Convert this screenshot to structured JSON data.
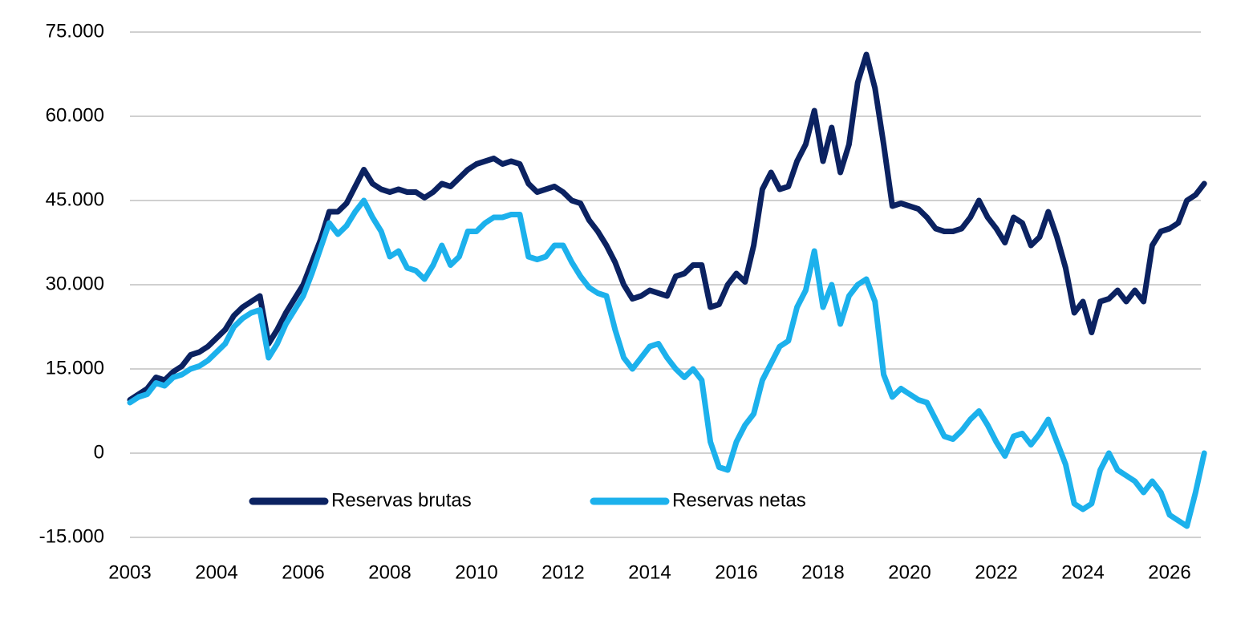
{
  "chart_data": {
    "type": "line",
    "categories": [
      "2003",
      null,
      null,
      null,
      null,
      null,
      null,
      null,
      null,
      null,
      "2004",
      null,
      null,
      null,
      null,
      null,
      null,
      null,
      null,
      null,
      "2006",
      null,
      null,
      null,
      null,
      null,
      null,
      null,
      null,
      null,
      "2008",
      null,
      null,
      null,
      null,
      null,
      null,
      null,
      null,
      null,
      "2010",
      null,
      null,
      null,
      null,
      null,
      null,
      null,
      null,
      null,
      "2012",
      null,
      null,
      null,
      null,
      null,
      null,
      null,
      null,
      null,
      "2014",
      null,
      null,
      null,
      null,
      null,
      null,
      null,
      null,
      null,
      "2016",
      null,
      null,
      null,
      null,
      null,
      null,
      null,
      null,
      null,
      "2018",
      null,
      null,
      null,
      null,
      null,
      null,
      null,
      null,
      null,
      "2020",
      null,
      null,
      null,
      null,
      null,
      null,
      null,
      null,
      null,
      "2022",
      null,
      null,
      null,
      null,
      null,
      null,
      null,
      null,
      null,
      "2024",
      null,
      null,
      null,
      null,
      null,
      null,
      null,
      null,
      null,
      "2026",
      null,
      null,
      null,
      null
    ],
    "series": [
      {
        "name": "Reservas brutas",
        "color": "#0b2261",
        "values": [
          9500,
          10500,
          11500,
          13500,
          13000,
          14500,
          15500,
          17500,
          18000,
          19000,
          20500,
          22000,
          24500,
          26000,
          27000,
          28000,
          19500,
          22000,
          25000,
          27500,
          30000,
          34000,
          38000,
          43000,
          43000,
          44500,
          47500,
          50500,
          48000,
          47000,
          46500,
          47000,
          46500,
          46500,
          45500,
          46500,
          48000,
          47500,
          49000,
          50500,
          51500,
          52000,
          52500,
          51500,
          52000,
          51500,
          48000,
          46500,
          47000,
          47500,
          46500,
          45000,
          44500,
          41500,
          39500,
          37000,
          34000,
          30000,
          27500,
          28000,
          29000,
          28500,
          28000,
          31500,
          32000,
          33500,
          33500,
          26000,
          26500,
          30000,
          32000,
          30500,
          37000,
          47000,
          50000,
          47000,
          47500,
          52000,
          55000,
          61000,
          52000,
          58000,
          50000,
          55000,
          66000,
          71000,
          65000,
          55000,
          44000,
          44500,
          44000,
          43500,
          42000,
          40000,
          39500,
          39500,
          40000,
          42000,
          45000,
          42000,
          40000,
          37500,
          42000,
          41000,
          37000,
          38500,
          43000,
          38500,
          33000,
          25000,
          27000,
          21500,
          27000,
          27500,
          29000,
          27000,
          29000,
          27000,
          37000,
          39500,
          40000,
          41000,
          45000,
          46000,
          48000
        ]
      },
      {
        "name": "Reservas netas",
        "color": "#1cb1ec",
        "values": [
          9000,
          10000,
          10500,
          12500,
          12000,
          13500,
          14000,
          15000,
          15500,
          16500,
          18000,
          19500,
          22500,
          24000,
          25000,
          25500,
          17000,
          19500,
          23000,
          25500,
          28000,
          32000,
          36500,
          41000,
          39000,
          40500,
          43000,
          45000,
          42000,
          39500,
          35000,
          36000,
          33000,
          32500,
          31000,
          33500,
          37000,
          33500,
          35000,
          39500,
          39500,
          41000,
          42000,
          42000,
          42500,
          42500,
          35000,
          34500,
          35000,
          37000,
          37000,
          34000,
          31500,
          29500,
          28500,
          28000,
          22000,
          17000,
          15000,
          17000,
          19000,
          19500,
          17000,
          15000,
          13500,
          15000,
          13000,
          2000,
          -2500,
          -3000,
          2000,
          5000,
          7000,
          13000,
          16000,
          19000,
          20000,
          26000,
          29000,
          36000,
          26000,
          30000,
          23000,
          28000,
          30000,
          31000,
          27000,
          14000,
          10000,
          11500,
          10500,
          9500,
          9000,
          6000,
          3000,
          2500,
          4000,
          6000,
          7500,
          5000,
          2000,
          -500,
          3000,
          3500,
          1500,
          3500,
          6000,
          2000,
          -2000,
          -9000,
          -10000,
          -9000,
          -3000,
          0,
          -3000,
          -4000,
          -5000,
          -7000,
          -5000,
          -7000,
          -11000,
          -12000,
          -13000,
          -7000,
          0
        ]
      }
    ],
    "ylim": [
      -15000,
      75000
    ],
    "yticks": [
      {
        "value": -15000,
        "label": "-15.000"
      },
      0,
      {
        "value": 15000,
        "label": "15.000"
      },
      {
        "value": 30000,
        "label": "30.000"
      },
      {
        "value": 45000,
        "label": "45.000"
      },
      {
        "value": 60000,
        "label": "60.000"
      },
      {
        "value": 75000,
        "label": "75.000"
      }
    ],
    "grid": true,
    "legend": "bottom"
  }
}
